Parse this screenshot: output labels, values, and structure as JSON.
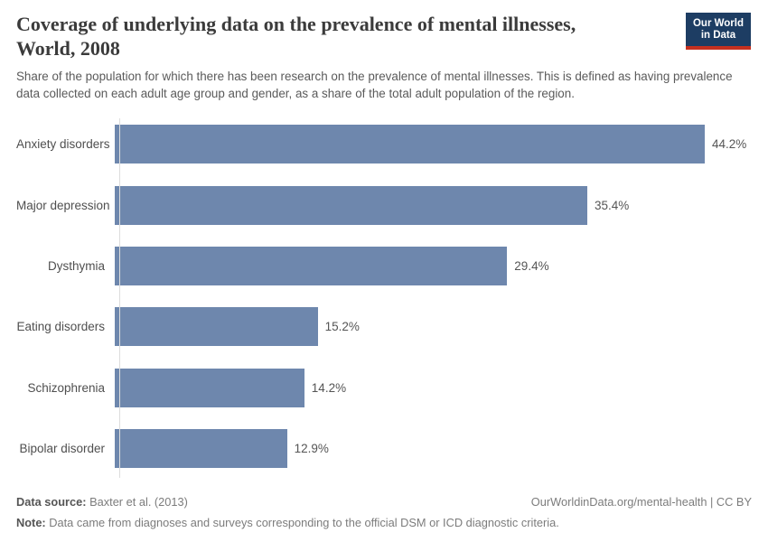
{
  "header": {
    "title_line1": "Coverage of underlying data on the prevalence of mental illnesses,",
    "title_line2": "World, 2008",
    "subtitle": "Share of the population for which there has been research on the prevalence of mental illnesses. This is defined as having prevalence data collected on each adult age group and gender, as a share of the total adult population of the region.",
    "logo": {
      "line1": "Our World",
      "line2": "in Data",
      "bg_color": "#1d3d63",
      "accent_color": "#c5301f"
    }
  },
  "chart_data": {
    "type": "bar",
    "orientation": "horizontal",
    "title": "Coverage of underlying data on the prevalence of mental illnesses, World, 2008",
    "categories": [
      "Anxiety disorders",
      "Major depression",
      "Dysthymia",
      "Eating disorders",
      "Schizophrenia",
      "Bipolar disorder"
    ],
    "values": [
      44.2,
      35.4,
      29.4,
      15.2,
      14.2,
      12.9
    ],
    "value_labels": [
      "44.2%",
      "35.4%",
      "29.4%",
      "15.2%",
      "14.2%",
      "12.9%"
    ],
    "unit": "%",
    "xlim": [
      0,
      44.2
    ],
    "bar_color": "#6e87ad",
    "grid": false,
    "legend": "none"
  },
  "footer": {
    "datasource_label": "Data source:",
    "datasource_value": " Baxter et al. (2013)",
    "citation": "OurWorldinData.org/mental-health | CC BY",
    "note_label": "Note:",
    "note_value": " Data came from diagnoses and surveys corresponding to the official DSM or ICD diagnostic criteria."
  }
}
